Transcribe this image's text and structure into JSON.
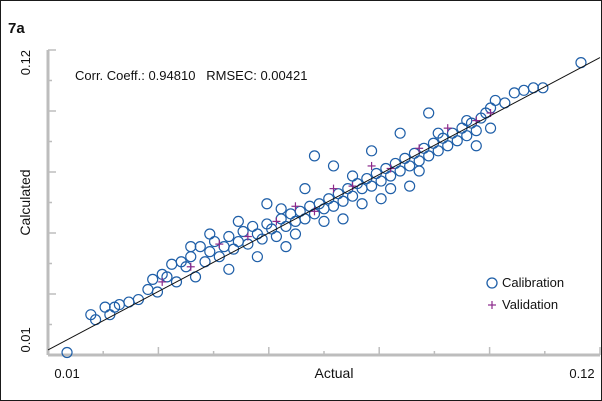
{
  "panel_label": "7a",
  "chart_data": {
    "type": "scatter",
    "title": "",
    "xlabel": "Actual",
    "ylabel": "Calculated",
    "xlim": [
      0.006,
      0.122
    ],
    "ylim": [
      0.004,
      0.125
    ],
    "x_tick_labels": [
      "0.01",
      "0.12"
    ],
    "y_tick_labels": [
      "0.01",
      "0.12"
    ],
    "annotation": "Corr. Coeff.: 0.94810   RMSEC: 0.00421",
    "legend_position": "bottom-right",
    "grid": false,
    "fit_line": {
      "x": [
        0.004,
        0.124
      ],
      "y": [
        0.004,
        0.124
      ]
    },
    "series": [
      {
        "name": "Calibration",
        "marker": "open-circle",
        "color": "#1f5fa8",
        "points": [
          [
            0.01,
            0.005
          ],
          [
            0.015,
            0.02
          ],
          [
            0.016,
            0.018
          ],
          [
            0.018,
            0.023
          ],
          [
            0.019,
            0.02
          ],
          [
            0.02,
            0.023
          ],
          [
            0.021,
            0.024
          ],
          [
            0.023,
            0.025
          ],
          [
            0.025,
            0.026
          ],
          [
            0.027,
            0.03
          ],
          [
            0.029,
            0.029
          ],
          [
            0.03,
            0.036
          ],
          [
            0.031,
            0.035
          ],
          [
            0.033,
            0.033
          ],
          [
            0.034,
            0.041
          ],
          [
            0.035,
            0.039
          ],
          [
            0.036,
            0.043
          ],
          [
            0.037,
            0.035
          ],
          [
            0.038,
            0.047
          ],
          [
            0.039,
            0.041
          ],
          [
            0.04,
            0.045
          ],
          [
            0.041,
            0.049
          ],
          [
            0.042,
            0.043
          ],
          [
            0.043,
            0.047
          ],
          [
            0.044,
            0.051
          ],
          [
            0.045,
            0.046
          ],
          [
            0.046,
            0.049
          ],
          [
            0.047,
            0.053
          ],
          [
            0.048,
            0.048
          ],
          [
            0.049,
            0.055
          ],
          [
            0.05,
            0.052
          ],
          [
            0.051,
            0.05
          ],
          [
            0.052,
            0.056
          ],
          [
            0.053,
            0.054
          ],
          [
            0.054,
            0.051
          ],
          [
            0.055,
            0.058
          ],
          [
            0.056,
            0.055
          ],
          [
            0.057,
            0.06
          ],
          [
            0.058,
            0.057
          ],
          [
            0.059,
            0.061
          ],
          [
            0.06,
            0.058
          ],
          [
            0.061,
            0.063
          ],
          [
            0.062,
            0.06
          ],
          [
            0.063,
            0.064
          ],
          [
            0.064,
            0.062
          ],
          [
            0.065,
            0.066
          ],
          [
            0.066,
            0.063
          ],
          [
            0.067,
            0.068
          ],
          [
            0.068,
            0.065
          ],
          [
            0.069,
            0.07
          ],
          [
            0.07,
            0.067
          ],
          [
            0.071,
            0.072
          ],
          [
            0.072,
            0.07
          ],
          [
            0.073,
            0.074
          ],
          [
            0.074,
            0.071
          ],
          [
            0.075,
            0.076
          ],
          [
            0.076,
            0.073
          ],
          [
            0.077,
            0.078
          ],
          [
            0.078,
            0.075
          ],
          [
            0.079,
            0.08
          ],
          [
            0.08,
            0.077
          ],
          [
            0.081,
            0.082
          ],
          [
            0.082,
            0.079
          ],
          [
            0.083,
            0.084
          ],
          [
            0.084,
            0.081
          ],
          [
            0.085,
            0.086
          ],
          [
            0.086,
            0.083
          ],
          [
            0.087,
            0.088
          ],
          [
            0.088,
            0.085
          ],
          [
            0.089,
            0.09
          ],
          [
            0.09,
            0.087
          ],
          [
            0.091,
            0.092
          ],
          [
            0.092,
            0.089
          ],
          [
            0.093,
            0.094
          ],
          [
            0.094,
            0.091
          ],
          [
            0.095,
            0.096
          ],
          [
            0.096,
            0.093
          ],
          [
            0.097,
            0.098
          ],
          [
            0.098,
            0.1
          ],
          [
            0.099,
            0.102
          ],
          [
            0.1,
            0.105
          ],
          [
            0.102,
            0.104
          ],
          [
            0.104,
            0.108
          ],
          [
            0.106,
            0.109
          ],
          [
            0.108,
            0.11
          ],
          [
            0.11,
            0.11
          ],
          [
            0.118,
            0.12
          ],
          [
            0.062,
            0.083
          ],
          [
            0.066,
            0.079
          ],
          [
            0.07,
            0.075
          ],
          [
            0.055,
            0.062
          ],
          [
            0.06,
            0.07
          ],
          [
            0.046,
            0.057
          ],
          [
            0.052,
            0.064
          ],
          [
            0.058,
            0.052
          ],
          [
            0.064,
            0.057
          ],
          [
            0.072,
            0.064
          ],
          [
            0.078,
            0.07
          ],
          [
            0.084,
            0.077
          ],
          [
            0.088,
            0.092
          ],
          [
            0.094,
            0.097
          ],
          [
            0.096,
            0.087
          ],
          [
            0.086,
            0.1
          ],
          [
            0.099,
            0.094
          ],
          [
            0.074,
            0.085
          ],
          [
            0.08,
            0.092
          ],
          [
            0.044,
            0.038
          ],
          [
            0.05,
            0.043
          ],
          [
            0.04,
            0.052
          ],
          [
            0.036,
            0.047
          ],
          [
            0.032,
            0.04
          ],
          [
            0.028,
            0.034
          ],
          [
            0.056,
            0.047
          ],
          [
            0.068,
            0.058
          ],
          [
            0.076,
            0.066
          ],
          [
            0.082,
            0.071
          ]
        ]
      },
      {
        "name": "Validation",
        "marker": "plus",
        "color": "#8b2a8b",
        "points": [
          [
            0.03,
            0.033
          ],
          [
            0.036,
            0.039
          ],
          [
            0.042,
            0.048
          ],
          [
            0.048,
            0.051
          ],
          [
            0.054,
            0.057
          ],
          [
            0.058,
            0.063
          ],
          [
            0.062,
            0.061
          ],
          [
            0.066,
            0.07
          ],
          [
            0.07,
            0.071
          ],
          [
            0.074,
            0.079
          ],
          [
            0.078,
            0.078
          ],
          [
            0.084,
            0.086
          ],
          [
            0.09,
            0.094
          ],
          [
            0.096,
            0.097
          ],
          [
            0.099,
            0.1
          ]
        ]
      }
    ]
  }
}
